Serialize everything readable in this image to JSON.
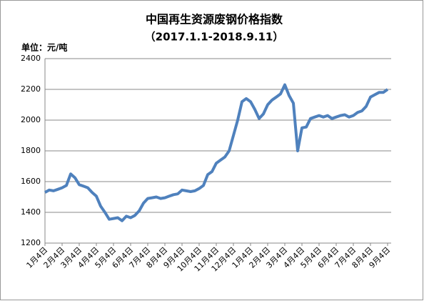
{
  "chart_data": {
    "type": "line",
    "title": "中国再生资源废钢价格指数",
    "subtitle": "（2017.1.1-2018.9.11）",
    "y_label": "单位：元/吨",
    "categories": [
      "1月4日",
      null,
      null,
      null,
      "2月4日",
      null,
      null,
      null,
      "3月4日",
      null,
      null,
      null,
      "4月4日",
      null,
      null,
      null,
      "5月4日",
      null,
      null,
      null,
      "6月4日",
      null,
      null,
      null,
      "7月4日",
      null,
      null,
      null,
      "8月4日",
      null,
      null,
      null,
      "9月4日",
      null,
      null,
      null,
      "10月4日",
      null,
      null,
      null,
      "11月4日",
      null,
      null,
      null,
      "12月4日",
      null,
      null,
      null,
      "1月4日",
      null,
      null,
      null,
      "2月4日",
      null,
      null,
      null,
      "3月4日",
      null,
      null,
      null,
      "4月4日",
      null,
      null,
      null,
      "5月4日",
      null,
      null,
      null,
      "6月4日",
      null,
      null,
      null,
      "7月4日",
      null,
      null,
      null,
      "8月4日",
      null,
      null,
      null,
      "9月4日"
    ],
    "series": [
      {
        "color": "#4f81bd",
        "values": [
          1530,
          1545,
          1540,
          1550,
          1560,
          1575,
          1650,
          1625,
          1580,
          1570,
          1560,
          1530,
          1505,
          1440,
          1400,
          1355,
          1360,
          1365,
          1345,
          1375,
          1365,
          1380,
          1410,
          1460,
          1490,
          1495,
          1500,
          1490,
          1495,
          1505,
          1515,
          1520,
          1545,
          1540,
          1535,
          1540,
          1555,
          1575,
          1645,
          1665,
          1720,
          1740,
          1760,
          1800,
          1900,
          2000,
          2120,
          2140,
          2120,
          2070,
          2010,
          2040,
          2100,
          2130,
          2150,
          2170,
          2230,
          2160,
          2110,
          1800,
          1950,
          1955,
          2010,
          2020,
          2030,
          2020,
          2030,
          2010,
          2020,
          2030,
          2035,
          2020,
          2030,
          2050,
          2060,
          2090,
          2150,
          2165,
          2180,
          2180,
          2200
        ]
      }
    ],
    "ylim": [
      1200,
      2400
    ],
    "yticks": [
      1200,
      1400,
      1600,
      1800,
      2000,
      2200,
      2400
    ],
    "grid": true
  }
}
